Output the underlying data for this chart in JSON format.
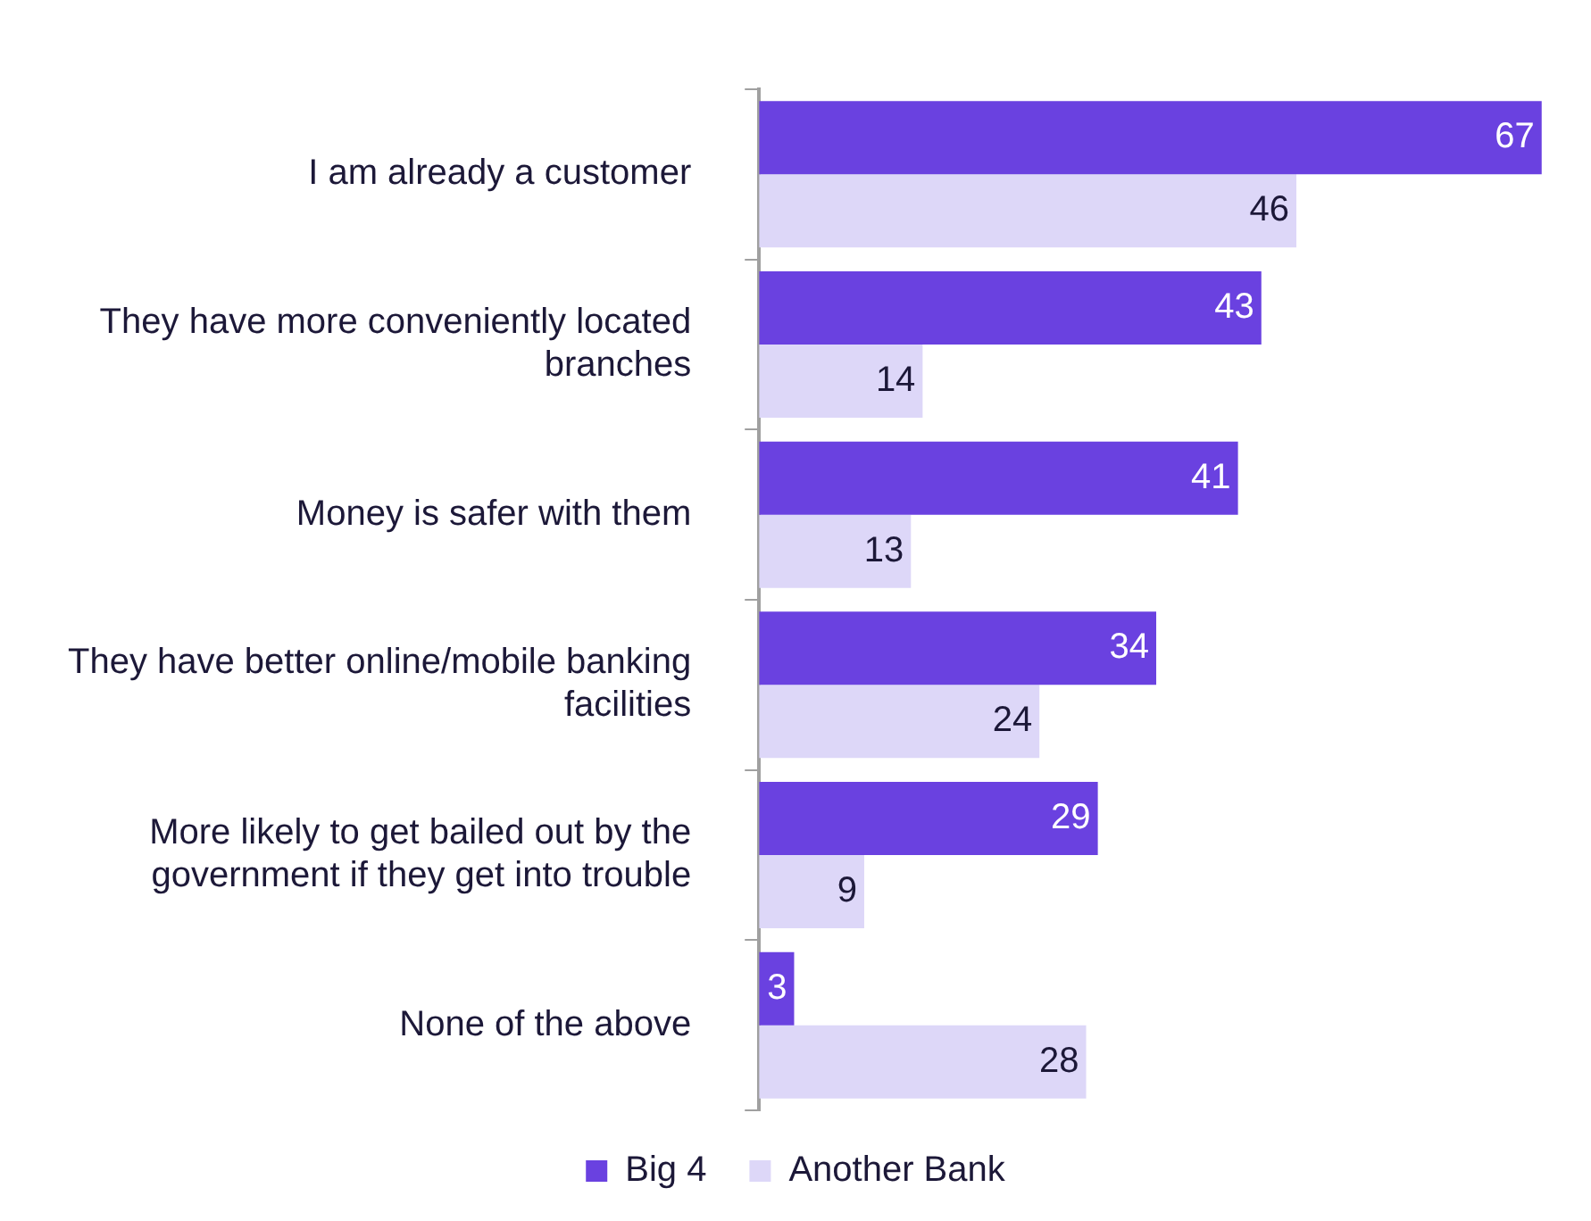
{
  "chart_data": {
    "type": "bar",
    "orientation": "horizontal",
    "categories": [
      "I am already a customer",
      "They have more conveniently located branches",
      "Money is safer with them",
      "They have better online/mobile banking facilities",
      "More likely to get bailed out by the government if they get into trouble",
      "None of the above"
    ],
    "series": [
      {
        "name": "Big 4",
        "color": "#6a41e0",
        "values": [
          67,
          43,
          41,
          34,
          29,
          3
        ]
      },
      {
        "name": "Another Bank",
        "color": "#ddd7f8",
        "values": [
          46,
          14,
          13,
          24,
          9,
          28
        ]
      }
    ],
    "data_labels": true,
    "legend": "bottom",
    "tick_labels": false,
    "grid": false
  }
}
